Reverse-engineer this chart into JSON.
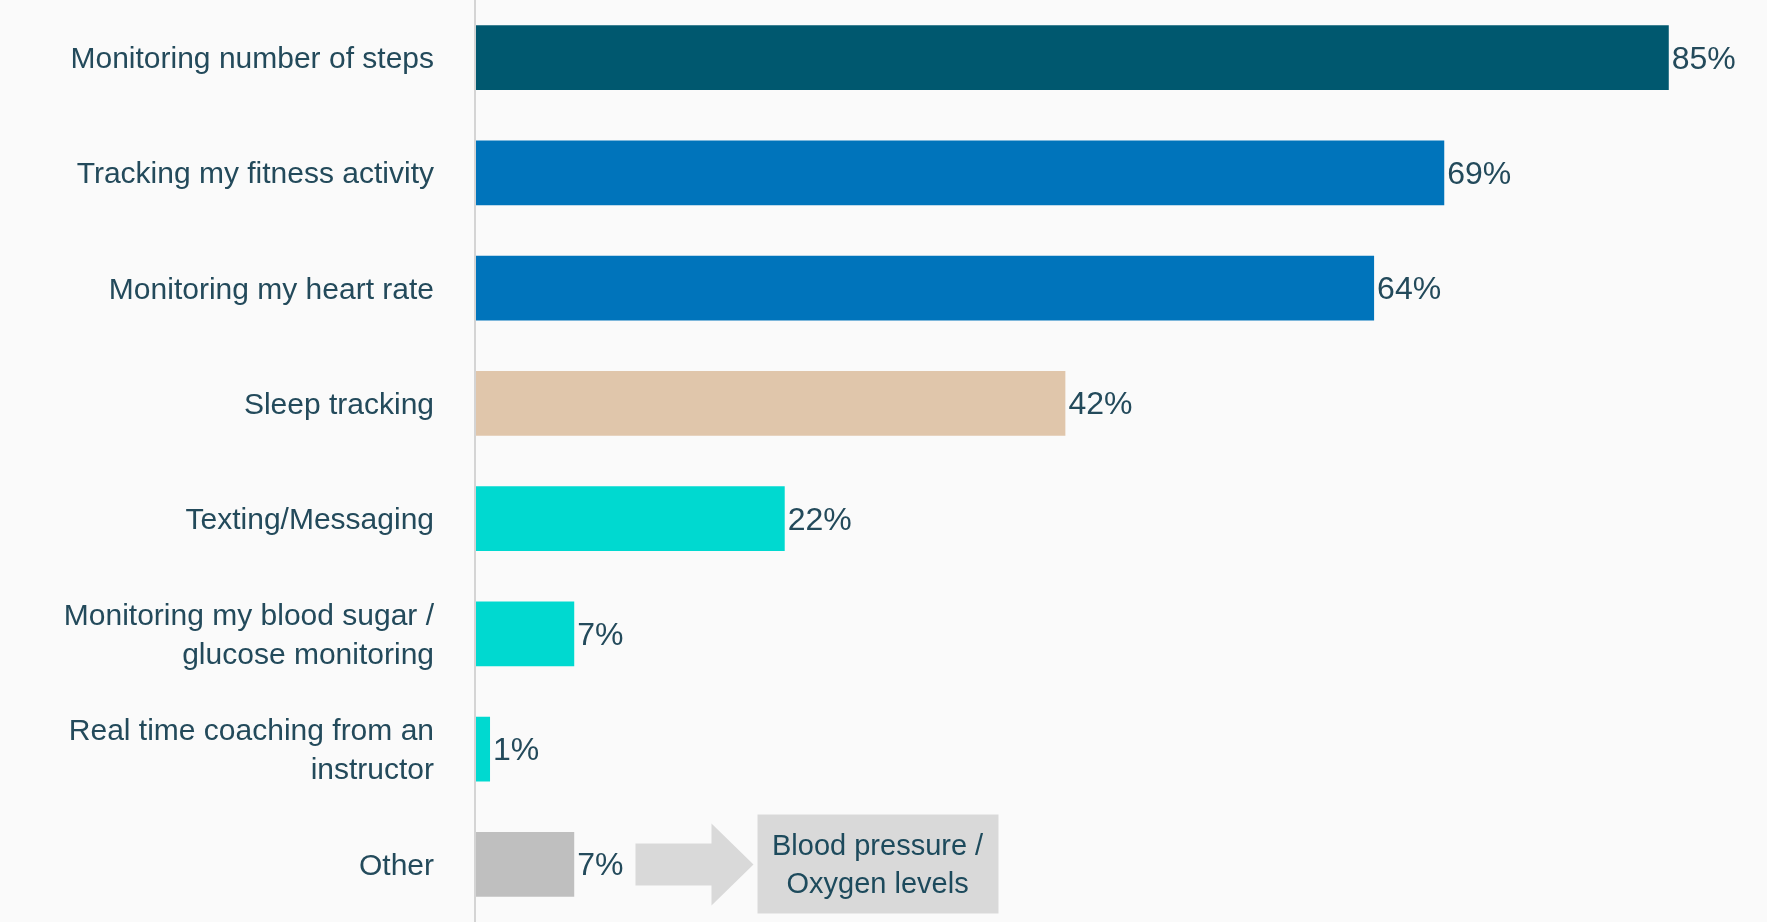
{
  "chart_data": {
    "type": "bar",
    "orientation": "horizontal",
    "categories": [
      "Monitoring number of steps",
      "Tracking my fitness activity",
      "Monitoring my heart rate",
      "Sleep tracking",
      "Texting/Messaging",
      "Monitoring my blood sugar / glucose monitoring",
      "Real time coaching from an instructor",
      "Other"
    ],
    "values": [
      85,
      69,
      64,
      42,
      22,
      7,
      1,
      7
    ],
    "value_labels": [
      "85%",
      "69%",
      "64%",
      "42%",
      "22%",
      "7%",
      "1%",
      "7%"
    ],
    "colors": [
      "#00586f",
      "#0074bb",
      "#0074bb",
      "#e0c6ab",
      "#00d9d0",
      "#00d9d0",
      "#00d9d0",
      "#bfbfbf"
    ],
    "xlim": [
      0,
      92
    ],
    "tick_labels": "y",
    "annotations": [
      "Blood pressure / Oxygen levels"
    ]
  }
}
